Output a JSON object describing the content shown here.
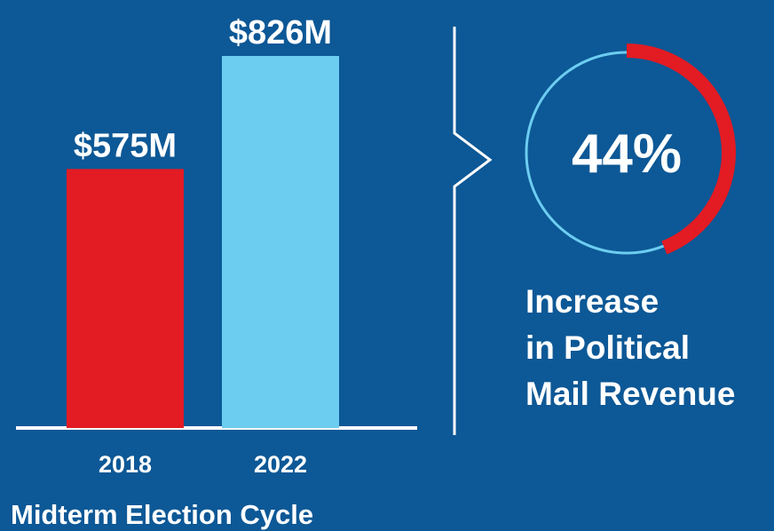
{
  "chart_data": [
    {
      "type": "bar",
      "categories": [
        "2018",
        "2022"
      ],
      "values": [
        575,
        826
      ],
      "value_labels": [
        "$575M",
        "$826M"
      ],
      "colors": [
        "#e31b23",
        "#6ccdf0"
      ],
      "xlabel": "Midterm Election Cycle"
    },
    {
      "type": "donut",
      "values": [
        44
      ],
      "value_labels": [
        "44%"
      ],
      "color": "#e31b23",
      "track_color": "#6ccdf0",
      "caption": [
        "Increase",
        "in Political",
        "Mail Revenue"
      ]
    }
  ]
}
